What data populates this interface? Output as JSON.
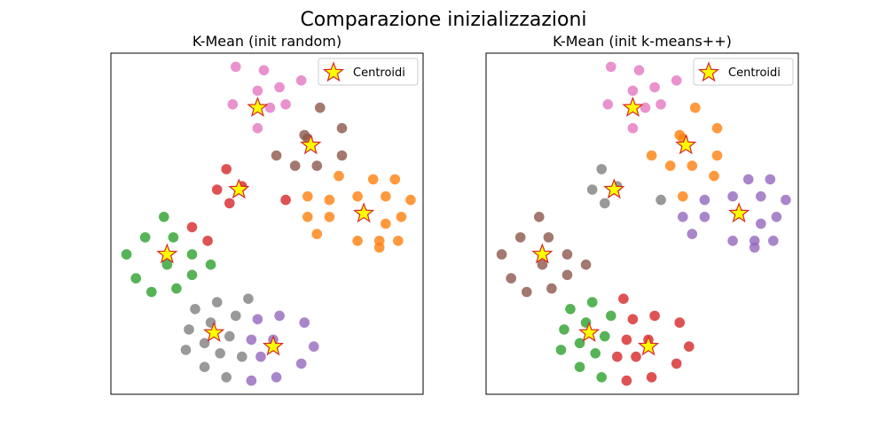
{
  "figure": {
    "suptitle": "Comparazione inizializzazioni"
  },
  "chart_data": [
    {
      "type": "scatter",
      "title": "K-Mean (init random)",
      "xlabel": "",
      "ylabel": "",
      "xlim": [
        0,
        100
      ],
      "ylim": [
        0,
        100
      ],
      "ticks": "hidden",
      "grid": false,
      "legend": {
        "entries": [
          "Centroidi"
        ],
        "placement": "top-right"
      },
      "clusters": [
        {
          "color": "#e377c2",
          "points": [
            [
              40,
              96
            ],
            [
              49,
              95
            ],
            [
              47,
              89
            ],
            [
              54,
              90
            ],
            [
              61,
              92
            ],
            [
              39,
              85
            ],
            [
              51,
              84
            ],
            [
              56,
              85
            ],
            [
              47,
              78
            ]
          ]
        },
        {
          "color": "#8c564b",
          "points": [
            [
              67,
              84
            ],
            [
              63,
              75
            ],
            [
              62,
              76
            ],
            [
              74,
              78
            ],
            [
              53,
              70
            ],
            [
              59,
              67
            ],
            [
              74,
              70
            ],
            [
              66,
              67
            ]
          ]
        },
        {
          "color": "#d62728",
          "points": [
            [
              37,
              66
            ],
            [
              34,
              60
            ],
            [
              42,
              61
            ],
            [
              38,
              56
            ],
            [
              56,
              57
            ],
            [
              26,
              49
            ],
            [
              31,
              45
            ]
          ]
        },
        {
          "color": "#ff7f0e",
          "points": [
            [
              73,
              64
            ],
            [
              84,
              63
            ],
            [
              91,
              63
            ],
            [
              63,
              58
            ],
            [
              70,
              57
            ],
            [
              79,
              58
            ],
            [
              88,
              58
            ],
            [
              96,
              57
            ],
            [
              63,
              52
            ],
            [
              70,
              52
            ],
            [
              81,
              53
            ],
            [
              93,
              52
            ],
            [
              88,
              50
            ],
            [
              66,
              47
            ],
            [
              79,
              45
            ],
            [
              86,
              45
            ],
            [
              92,
              45
            ],
            [
              86,
              43
            ]
          ]
        },
        {
          "color": "#2ca02c",
          "points": [
            [
              17,
              52
            ],
            [
              11,
              46
            ],
            [
              20,
              46
            ],
            [
              26,
              41
            ],
            [
              5,
              41
            ],
            [
              18,
              38
            ],
            [
              32,
              38
            ],
            [
              8,
              34
            ],
            [
              26,
              35
            ],
            [
              13,
              30
            ],
            [
              21,
              31
            ]
          ]
        },
        {
          "color": "#7f7f7f",
          "points": [
            [
              44,
              28
            ],
            [
              27,
              25
            ],
            [
              34,
              27
            ],
            [
              40,
              23
            ],
            [
              32,
              21
            ],
            [
              25,
              19
            ],
            [
              38,
              17
            ],
            [
              30,
              15
            ],
            [
              24,
              13
            ],
            [
              35,
              12
            ],
            [
              42,
              11
            ],
            [
              30,
              8
            ],
            [
              37,
              5
            ]
          ]
        },
        {
          "color": "#9467bd",
          "points": [
            [
              47,
              22
            ],
            [
              54,
              23
            ],
            [
              62,
              21
            ],
            [
              45,
              16
            ],
            [
              52,
              16
            ],
            [
              65,
              14
            ],
            [
              48,
              11
            ],
            [
              61,
              9
            ],
            [
              53,
              5
            ],
            [
              45,
              4
            ]
          ]
        }
      ],
      "centroids": [
        [
          47,
          84
        ],
        [
          64,
          73
        ],
        [
          41,
          60
        ],
        [
          81,
          53
        ],
        [
          18,
          41
        ],
        [
          33,
          18
        ],
        [
          52,
          14
        ]
      ]
    },
    {
      "type": "scatter",
      "title": "K-Mean (init k-means++)",
      "xlabel": "",
      "ylabel": "",
      "xlim": [
        0,
        100
      ],
      "ylim": [
        0,
        100
      ],
      "ticks": "hidden",
      "grid": false,
      "legend": {
        "entries": [
          "Centroidi"
        ],
        "placement": "top-right"
      },
      "clusters": [
        {
          "color": "#e377c2",
          "points": [
            [
              40,
              96
            ],
            [
              49,
              95
            ],
            [
              47,
              89
            ],
            [
              54,
              90
            ],
            [
              61,
              92
            ],
            [
              39,
              85
            ],
            [
              51,
              84
            ],
            [
              56,
              85
            ],
            [
              47,
              78
            ]
          ]
        },
        {
          "color": "#ff7f0e",
          "points": [
            [
              67,
              84
            ],
            [
              63,
              75
            ],
            [
              62,
              76
            ],
            [
              74,
              78
            ],
            [
              53,
              70
            ],
            [
              59,
              67
            ],
            [
              74,
              70
            ],
            [
              66,
              67
            ],
            [
              73,
              64
            ],
            [
              63,
              58
            ]
          ]
        },
        {
          "color": "#7f7f7f",
          "points": [
            [
              37,
              66
            ],
            [
              34,
              60
            ],
            [
              42,
              61
            ],
            [
              38,
              56
            ],
            [
              56,
              57
            ]
          ]
        },
        {
          "color": "#9467bd",
          "points": [
            [
              84,
              63
            ],
            [
              91,
              63
            ],
            [
              70,
              57
            ],
            [
              79,
              58
            ],
            [
              88,
              58
            ],
            [
              96,
              57
            ],
            [
              63,
              52
            ],
            [
              70,
              52
            ],
            [
              81,
              53
            ],
            [
              93,
              52
            ],
            [
              88,
              50
            ],
            [
              66,
              47
            ],
            [
              79,
              45
            ],
            [
              86,
              45
            ],
            [
              92,
              45
            ],
            [
              86,
              43
            ]
          ]
        },
        {
          "color": "#8c564b",
          "points": [
            [
              17,
              52
            ],
            [
              11,
              46
            ],
            [
              20,
              46
            ],
            [
              26,
              41
            ],
            [
              5,
              41
            ],
            [
              18,
              38
            ],
            [
              32,
              38
            ],
            [
              8,
              34
            ],
            [
              26,
              35
            ],
            [
              13,
              30
            ],
            [
              21,
              31
            ]
          ]
        },
        {
          "color": "#2ca02c",
          "points": [
            [
              34,
              27
            ],
            [
              27,
              25
            ],
            [
              25,
              19
            ],
            [
              30,
              15
            ],
            [
              24,
              13
            ],
            [
              35,
              12
            ],
            [
              30,
              8
            ],
            [
              37,
              5
            ],
            [
              40,
              23
            ],
            [
              32,
              21
            ],
            [
              38,
              17
            ]
          ]
        },
        {
          "color": "#d62728",
          "points": [
            [
              47,
              22
            ],
            [
              54,
              23
            ],
            [
              62,
              21
            ],
            [
              44,
              28
            ],
            [
              45,
              16
            ],
            [
              52,
              16
            ],
            [
              65,
              14
            ],
            [
              48,
              11
            ],
            [
              61,
              9
            ],
            [
              53,
              5
            ],
            [
              42,
              11
            ],
            [
              45,
              4
            ]
          ]
        }
      ],
      "centroids": [
        [
          47,
          84
        ],
        [
          64,
          73
        ],
        [
          41,
          60
        ],
        [
          81,
          53
        ],
        [
          18,
          41
        ],
        [
          33,
          18
        ],
        [
          52,
          14
        ]
      ]
    }
  ]
}
